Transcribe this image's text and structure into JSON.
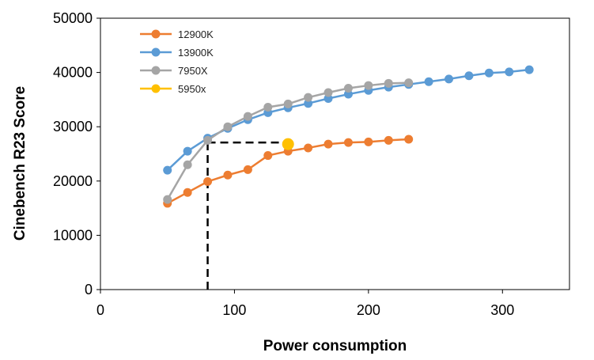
{
  "chart_data": {
    "type": "line",
    "title": "",
    "xlabel": "Power consumption",
    "ylabel": "Cinebench R23 Score",
    "xlim": [
      0,
      350
    ],
    "ylim": [
      0,
      50000
    ],
    "xticks": [
      "0",
      "100",
      "200",
      "300"
    ],
    "yticks": [
      "0",
      "10000",
      "20000",
      "30000",
      "40000",
      "50000"
    ],
    "grid": false,
    "legend_position": "top-left",
    "series": [
      {
        "name": "12900K",
        "color": "#ED7D31",
        "x": [
          50,
          65,
          80,
          95,
          110,
          125,
          140,
          155,
          170,
          185,
          200,
          215,
          230
        ],
        "y": [
          15900,
          17900,
          19900,
          21100,
          22100,
          24700,
          25500,
          26100,
          26800,
          27100,
          27200,
          27500,
          27700
        ]
      },
      {
        "name": "13900K",
        "color": "#5B9BD5",
        "x": [
          50,
          65,
          80,
          95,
          110,
          125,
          140,
          155,
          170,
          185,
          200,
          215,
          230,
          245,
          260,
          275,
          290,
          305,
          320
        ],
        "y": [
          22000,
          25500,
          27900,
          29700,
          31300,
          32600,
          33500,
          34300,
          35200,
          36000,
          36700,
          37300,
          37800,
          38300,
          38800,
          39400,
          39900,
          40100,
          40500
        ]
      },
      {
        "name": "7950X",
        "color": "#A5A5A5",
        "x": [
          50,
          65,
          80,
          95,
          110,
          125,
          140,
          155,
          170,
          185,
          200,
          215,
          230
        ],
        "y": [
          16600,
          23000,
          27500,
          30000,
          31900,
          33600,
          34200,
          35400,
          36300,
          37100,
          37600,
          38000,
          38100
        ]
      },
      {
        "name": "5950x",
        "color": "#FFC000",
        "x": [
          140
        ],
        "y": [
          26800
        ]
      }
    ],
    "reference_lines": {
      "x": 80,
      "y": 27100,
      "color": "#000000",
      "dashed": true
    }
  }
}
